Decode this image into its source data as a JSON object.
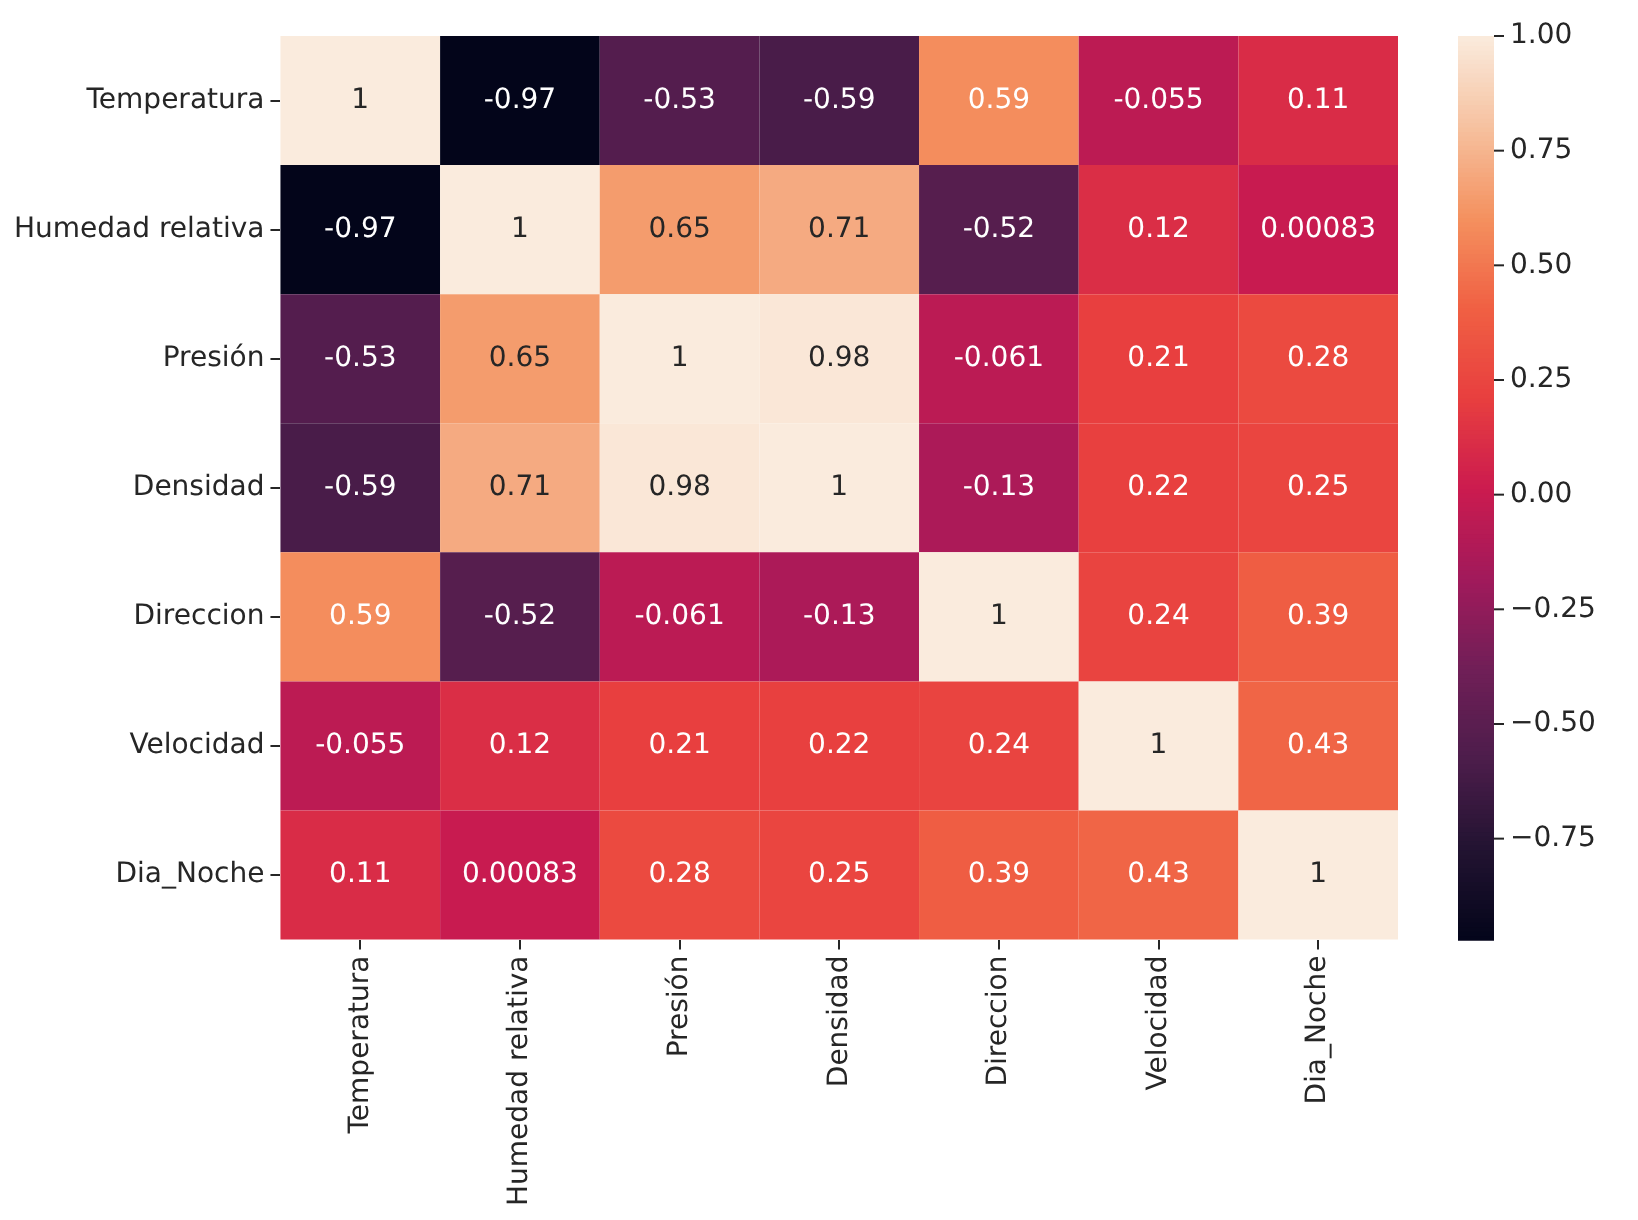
{
  "chart_data": {
    "type": "heatmap",
    "categories": [
      "Temperatura",
      "Humedad relativa",
      "Presión",
      "Densidad",
      "Direccion",
      "Velocidad",
      "Dia_Noche"
    ],
    "y_categories": [
      "Temperatura",
      "Humedad relativa",
      "Presión",
      "Densidad",
      "Direccion",
      "Velocidad",
      "Dia_Noche"
    ],
    "cells": [
      [
        1,
        -0.97,
        -0.53,
        -0.59,
        0.59,
        -0.055,
        0.11
      ],
      [
        -0.97,
        1,
        0.65,
        0.71,
        -0.52,
        0.12,
        0.00083
      ],
      [
        -0.53,
        0.65,
        1,
        0.98,
        -0.061,
        0.21,
        0.28
      ],
      [
        -0.59,
        0.71,
        0.98,
        1,
        -0.13,
        0.22,
        0.25
      ],
      [
        0.59,
        -0.52,
        -0.061,
        -0.13,
        1,
        0.24,
        0.39
      ],
      [
        -0.055,
        0.12,
        0.21,
        0.22,
        0.24,
        1,
        0.43
      ],
      [
        0.11,
        0.00083,
        0.28,
        0.25,
        0.39,
        0.43,
        1
      ]
    ],
    "data_labels": true,
    "clim": [
      -0.97,
      1
    ],
    "cticks": [
      {
        "value": -0.75,
        "label": "−0.75"
      },
      {
        "value": -0.5,
        "label": "−0.50"
      },
      {
        "value": -0.25,
        "label": "−0.25"
      },
      {
        "value": 0,
        "label": "0.00"
      },
      {
        "value": 0.25,
        "label": "0.25"
      },
      {
        "value": 0.5,
        "label": "0.50"
      },
      {
        "value": 0.75,
        "label": "0.75"
      },
      {
        "value": 1,
        "label": "1.00"
      }
    ]
  }
}
